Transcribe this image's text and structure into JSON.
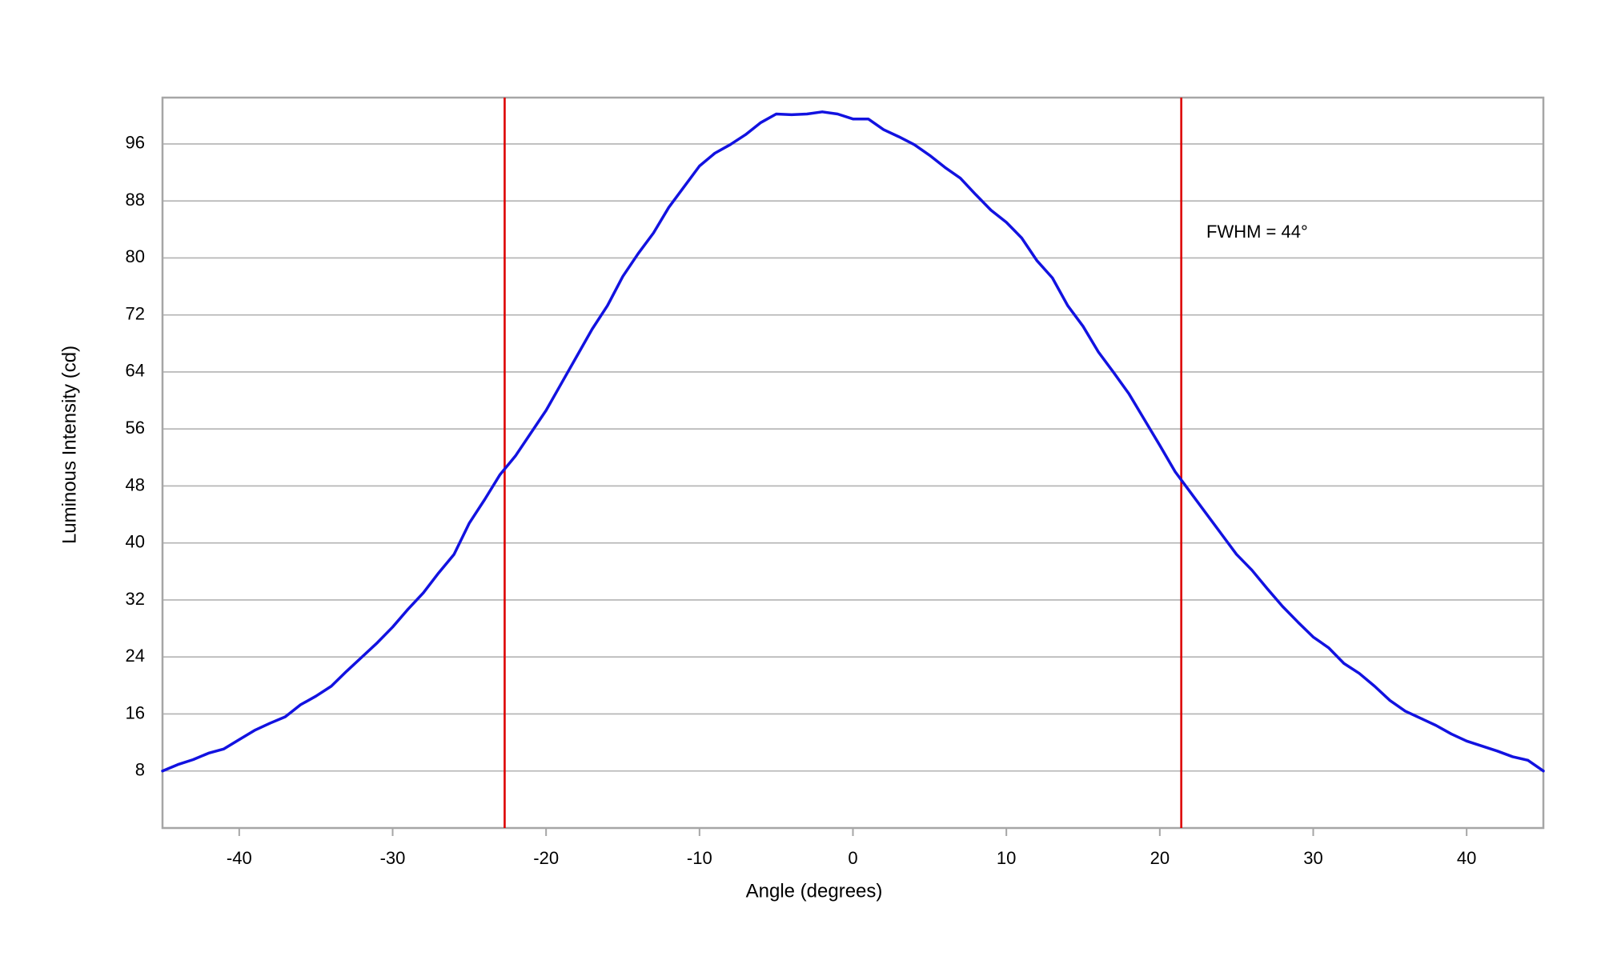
{
  "chart_data": {
    "type": "line",
    "x_label": "Angle (degrees)",
    "y_label": "Luminous Intensity (cd)",
    "annotation": "FWHM = 44°",
    "x": [
      -45,
      -44,
      -43,
      -42,
      -41,
      -40,
      -39,
      -38,
      -37,
      -36,
      -35,
      -34,
      -33,
      -32,
      -31,
      -30,
      -29,
      -28,
      -27,
      -26,
      -25,
      -24,
      -23,
      -22,
      -21,
      -20,
      -19,
      -18,
      -17,
      -16,
      -15,
      -14,
      -13,
      -12,
      -11,
      -10,
      -9,
      -8,
      -7,
      -6,
      -5,
      -4,
      -3,
      -2,
      -1,
      0,
      1,
      2,
      3,
      4,
      5,
      6,
      7,
      8,
      9,
      10,
      11,
      12,
      13,
      14,
      15,
      16,
      17,
      18,
      19,
      20,
      21,
      22,
      23,
      24,
      25,
      26,
      27,
      28,
      29,
      30,
      31,
      32,
      33,
      34,
      35,
      36,
      37,
      38,
      39,
      40,
      41,
      42,
      43,
      44,
      45
    ],
    "series": [
      {
        "color": "#1212e0",
        "values": [
          8,
          8.9,
          9.6,
          10.5,
          11.1,
          12.4,
          13.7,
          14.7,
          15.6,
          17.3,
          18.5,
          19.9,
          22,
          24,
          26,
          28.2,
          30.7,
          33,
          35.8,
          38.4,
          42.8,
          46.1,
          49.6,
          52.2,
          55.4,
          58.6,
          62.4,
          66.2,
          70,
          73.3,
          77.4,
          80.6,
          83.5,
          87.1,
          90,
          92.9,
          94.7,
          95.9,
          97.3,
          99,
          100.2,
          100.1,
          100.2,
          100.5,
          100.2,
          99.5,
          99.5,
          98,
          97,
          95.9,
          94.4,
          92.7,
          91.2,
          88.9,
          86.7,
          85,
          82.8,
          79.6,
          77.2,
          73.3,
          70.4,
          66.8,
          63.9,
          60.9,
          57.3,
          53.7,
          50,
          47.1,
          44.2,
          41.3,
          38.4,
          36.2,
          33.6,
          31.1,
          28.9,
          26.8,
          25.3,
          23.1,
          21.7,
          19.9,
          17.9,
          16.4,
          15.4,
          14.4,
          13.2,
          12.2,
          11.5,
          10.8,
          10,
          9.5,
          8
        ]
      }
    ],
    "vlines": [
      -22.7,
      21.4
    ],
    "vline_color": "#dd0000",
    "xlim": [
      -45,
      45
    ],
    "xticks": [
      -40,
      -30,
      -20,
      -10,
      0,
      10,
      20,
      30,
      40
    ],
    "ylim": [
      0,
      102.5
    ],
    "yticks": [
      8,
      16,
      24,
      32,
      40,
      48,
      56,
      64,
      72,
      80,
      88,
      96
    ],
    "grid": true
  }
}
